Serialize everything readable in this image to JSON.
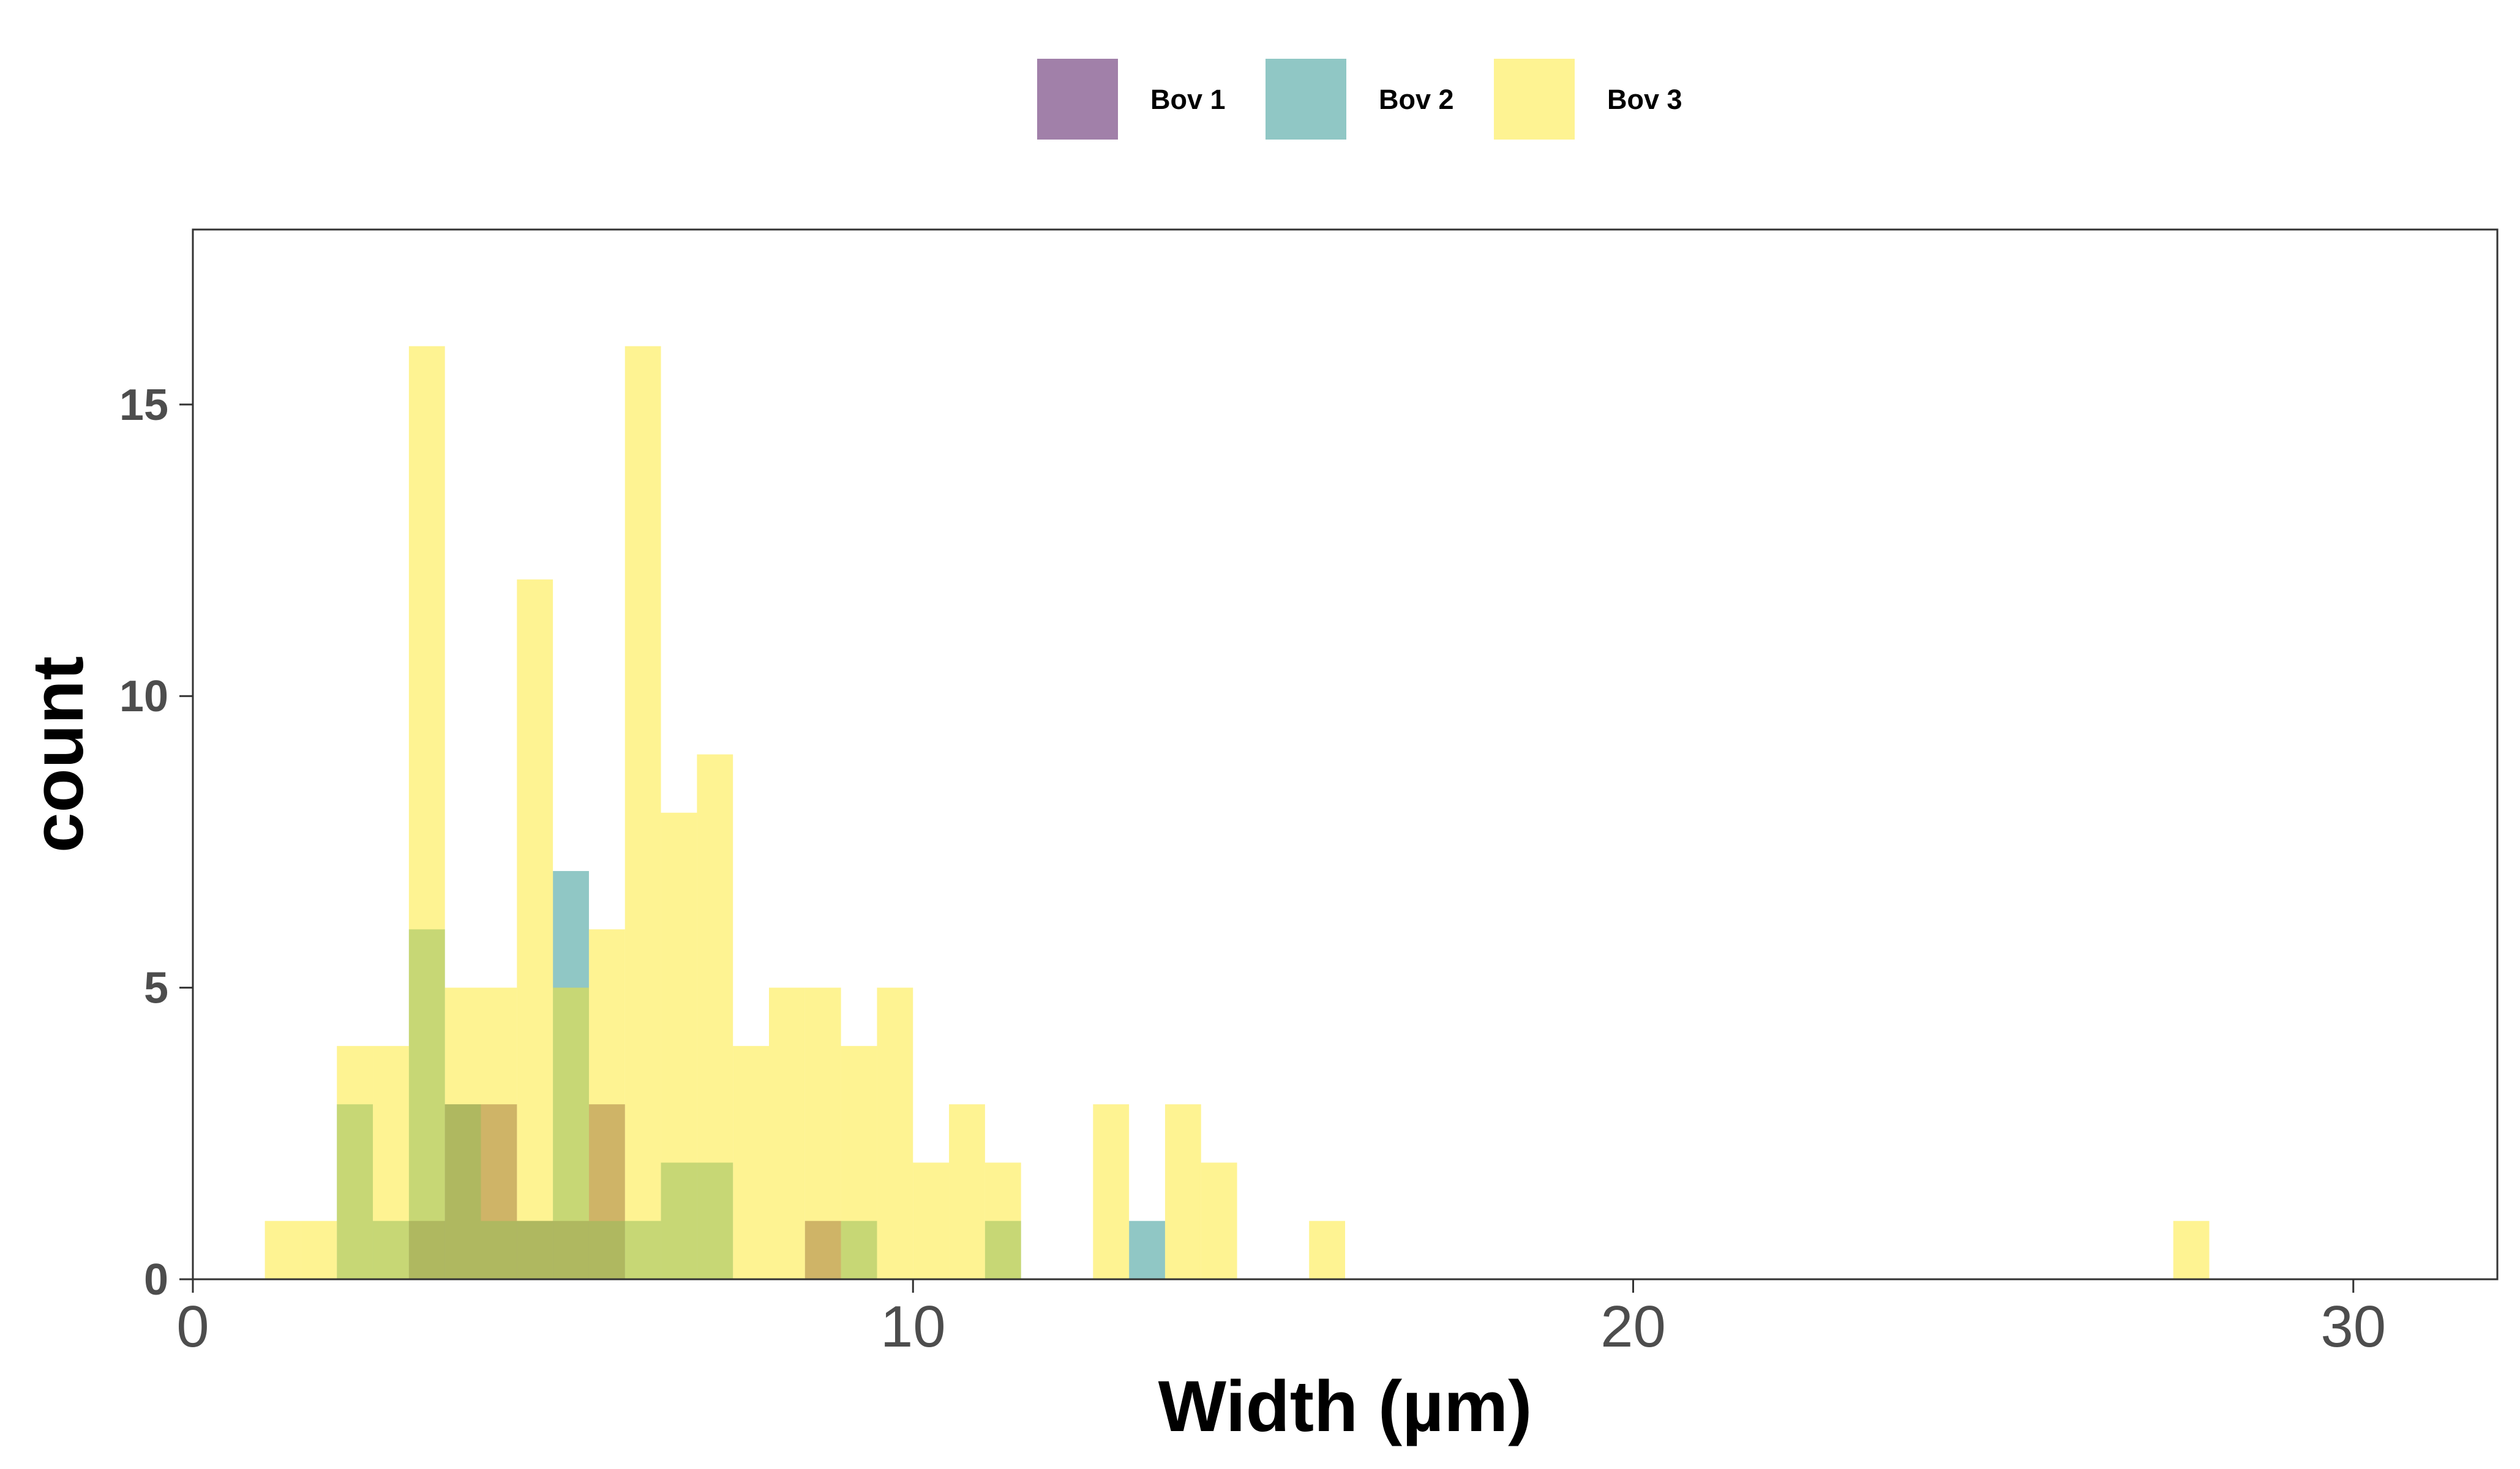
{
  "chart_data": {
    "type": "bar",
    "xlabel": "Width (µm)",
    "ylabel": "count",
    "xlim": [
      0,
      32
    ],
    "ylim": [
      0,
      18
    ],
    "x_ticks": [
      0,
      10,
      20,
      30
    ],
    "y_ticks": [
      0,
      5,
      10,
      15
    ],
    "grid": false,
    "legend_position": "top",
    "bin_width": 0.5,
    "series": [
      {
        "name": "Bov 1",
        "color": "#440154",
        "opacity": 0.5,
        "bins": [
          {
            "x": 3.25,
            "count": 1
          },
          {
            "x": 3.75,
            "count": 3
          },
          {
            "x": 4.25,
            "count": 3
          },
          {
            "x": 4.75,
            "count": 1
          },
          {
            "x": 5.25,
            "count": 1
          },
          {
            "x": 5.75,
            "count": 3
          },
          {
            "x": 8.75,
            "count": 1
          }
        ]
      },
      {
        "name": "Bov 2",
        "color": "#21908C",
        "opacity": 0.5,
        "bins": [
          {
            "x": 2.25,
            "count": 3
          },
          {
            "x": 2.75,
            "count": 1
          },
          {
            "x": 3.25,
            "count": 6
          },
          {
            "x": 3.75,
            "count": 3
          },
          {
            "x": 4.25,
            "count": 1
          },
          {
            "x": 4.75,
            "count": 1
          },
          {
            "x": 5.25,
            "count": 7
          },
          {
            "x": 5.75,
            "count": 1
          },
          {
            "x": 6.25,
            "count": 1
          },
          {
            "x": 6.75,
            "count": 2
          },
          {
            "x": 7.25,
            "count": 2
          },
          {
            "x": 9.25,
            "count": 1
          },
          {
            "x": 11.25,
            "count": 1
          },
          {
            "x": 13.25,
            "count": 1
          }
        ]
      },
      {
        "name": "Bov 3",
        "color": "#FDE725",
        "opacity": 0.5,
        "bins": [
          {
            "x": 1.25,
            "count": 1
          },
          {
            "x": 1.75,
            "count": 1
          },
          {
            "x": 2.25,
            "count": 4
          },
          {
            "x": 2.75,
            "count": 4
          },
          {
            "x": 3.25,
            "count": 16
          },
          {
            "x": 3.75,
            "count": 5
          },
          {
            "x": 4.25,
            "count": 5
          },
          {
            "x": 4.75,
            "count": 12
          },
          {
            "x": 5.25,
            "count": 5
          },
          {
            "x": 5.75,
            "count": 6
          },
          {
            "x": 6.25,
            "count": 16
          },
          {
            "x": 6.75,
            "count": 8
          },
          {
            "x": 7.25,
            "count": 9
          },
          {
            "x": 7.75,
            "count": 4
          },
          {
            "x": 8.25,
            "count": 5
          },
          {
            "x": 8.75,
            "count": 5
          },
          {
            "x": 9.25,
            "count": 4
          },
          {
            "x": 9.75,
            "count": 5
          },
          {
            "x": 10.25,
            "count": 2
          },
          {
            "x": 10.75,
            "count": 3
          },
          {
            "x": 11.25,
            "count": 2
          },
          {
            "x": 12.75,
            "count": 3
          },
          {
            "x": 13.75,
            "count": 3
          },
          {
            "x": 14.25,
            "count": 2
          },
          {
            "x": 15.75,
            "count": 1
          },
          {
            "x": 27.75,
            "count": 1
          }
        ]
      }
    ]
  }
}
